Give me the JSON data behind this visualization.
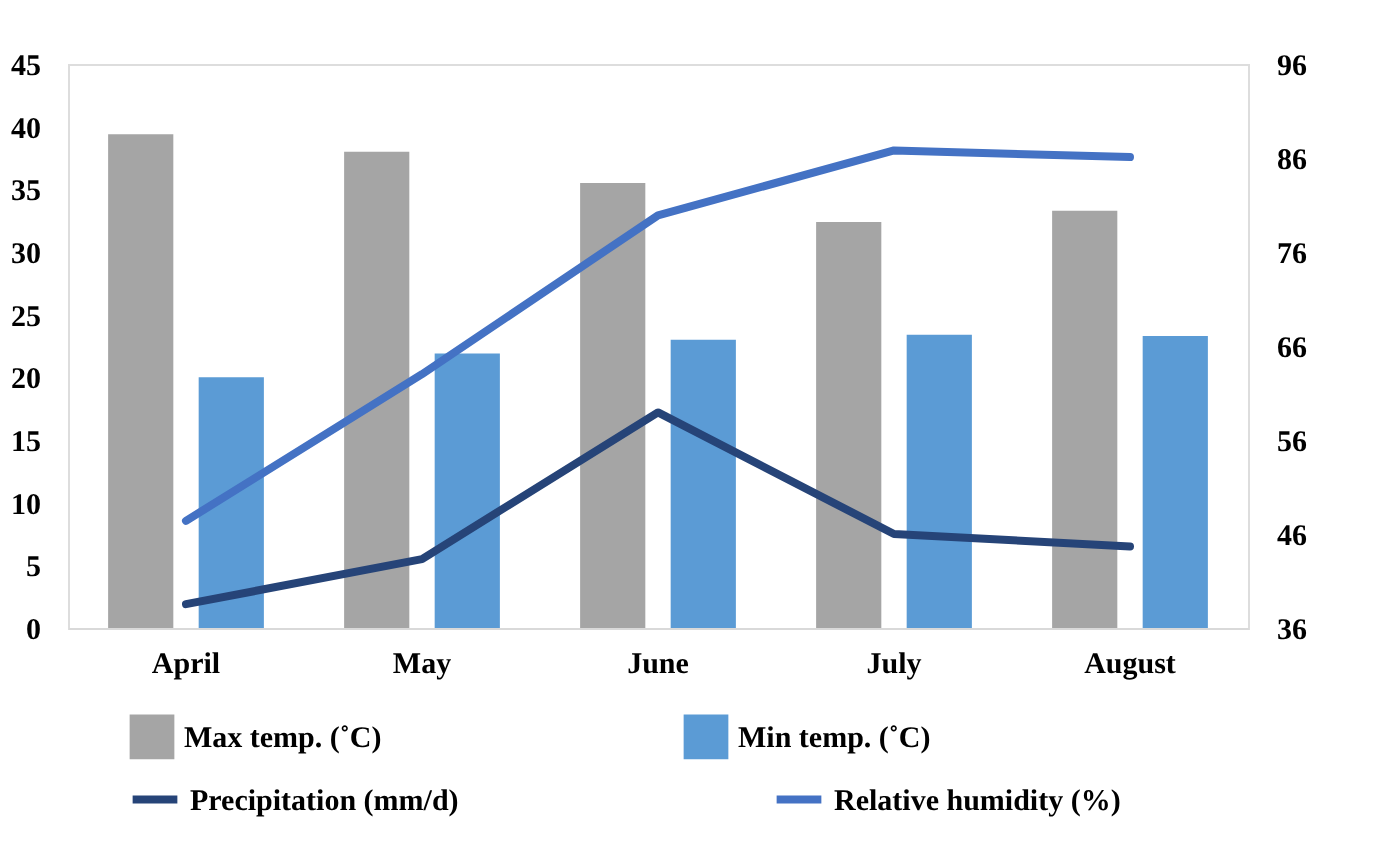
{
  "chart_data": {
    "type": "bar",
    "categories": [
      "April",
      "May",
      "June",
      "July",
      "August"
    ],
    "series": [
      {
        "name": "Max temp. (˚C)",
        "color": "#a5a5a5",
        "values": [
          39.4,
          38.0,
          35.5,
          32.4,
          33.3
        ]
      },
      {
        "name": "Min temp. (˚C)",
        "color": "#5b9bd5",
        "values": [
          20.0,
          21.9,
          23.0,
          23.4,
          23.3
        ]
      },
      {
        "name": "Precipitation (mm/d)",
        "type": "line",
        "color": "#264478",
        "values": [
          1.9,
          5.5,
          17.2,
          7.5,
          6.5
        ]
      },
      {
        "name": "Relative humidity (%)",
        "type": "line",
        "axis": "y2",
        "color": "#4472c4",
        "values": [
          47.4,
          63.0,
          79.9,
          86.8,
          86.1
        ]
      }
    ],
    "ylim": [
      0,
      45
    ],
    "yticks": [
      0,
      5,
      10,
      15,
      20,
      25,
      30,
      35,
      40,
      45
    ],
    "y2lim": [
      36,
      96
    ],
    "y2ticks": [
      36,
      46,
      56,
      66,
      76,
      86,
      96
    ],
    "grid": false,
    "legend": "bottom",
    "marker": "none",
    "line_style": "solid"
  }
}
